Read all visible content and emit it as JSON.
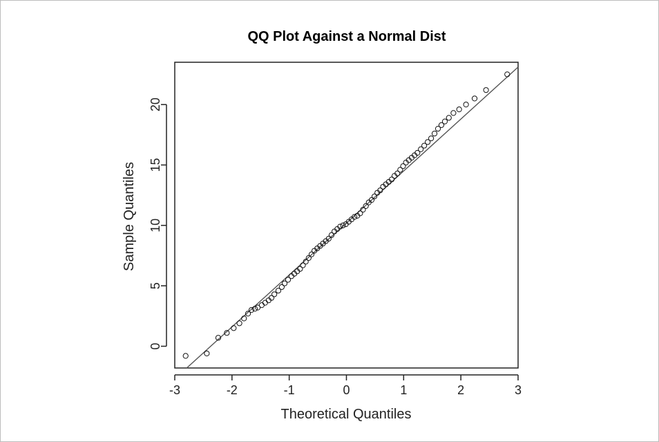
{
  "chart_data": {
    "type": "scatter",
    "title": "QQ Plot Against a Normal Dist",
    "xlabel": "Theoretical Quantiles",
    "ylabel": "Sample Quantiles",
    "xlim": [
      -3,
      3
    ],
    "ylim": [
      -1.8,
      23.5
    ],
    "grid": false,
    "legend": "none",
    "x_ticks": [
      -3,
      -2,
      -1,
      0,
      1,
      2,
      3
    ],
    "y_ticks": [
      0,
      5,
      10,
      15,
      20
    ],
    "reference_line": {
      "intercept": 10.2,
      "slope": 4.3
    },
    "series": [
      {
        "marker": "open-circle",
        "x": [
          -2.81,
          -2.44,
          -2.24,
          -2.09,
          -1.97,
          -1.87,
          -1.79,
          -1.72,
          -1.66,
          -1.6,
          -1.55,
          -1.48,
          -1.42,
          -1.36,
          -1.31,
          -1.26,
          -1.19,
          -1.13,
          -1.08,
          -1.02,
          -0.96,
          -0.91,
          -0.86,
          -0.81,
          -0.76,
          -0.71,
          -0.66,
          -0.61,
          -0.56,
          -0.51,
          -0.46,
          -0.41,
          -0.36,
          -0.31,
          -0.26,
          -0.21,
          -0.16,
          -0.11,
          -0.06,
          -0.01,
          0.04,
          0.09,
          0.14,
          0.19,
          0.24,
          0.29,
          0.34,
          0.39,
          0.44,
          0.49,
          0.54,
          0.59,
          0.64,
          0.69,
          0.74,
          0.79,
          0.84,
          0.89,
          0.94,
          0.99,
          1.04,
          1.09,
          1.14,
          1.19,
          1.24,
          1.3,
          1.36,
          1.42,
          1.48,
          1.54,
          1.6,
          1.66,
          1.72,
          1.79,
          1.87,
          1.97,
          2.09,
          2.24,
          2.44,
          2.81
        ],
        "y": [
          -0.8,
          -0.6,
          0.7,
          1.1,
          1.5,
          1.9,
          2.3,
          2.7,
          3.0,
          3.1,
          3.2,
          3.4,
          3.6,
          3.8,
          4.0,
          4.3,
          4.6,
          4.9,
          5.2,
          5.5,
          5.8,
          6.0,
          6.2,
          6.4,
          6.7,
          7.0,
          7.3,
          7.6,
          7.9,
          8.1,
          8.3,
          8.5,
          8.7,
          8.9,
          9.2,
          9.5,
          9.7,
          9.9,
          10.0,
          10.1,
          10.3,
          10.5,
          10.7,
          10.8,
          11.0,
          11.3,
          11.6,
          11.9,
          12.1,
          12.4,
          12.7,
          12.9,
          13.2,
          13.4,
          13.6,
          13.8,
          14.1,
          14.3,
          14.6,
          14.9,
          15.2,
          15.4,
          15.6,
          15.8,
          16.0,
          16.3,
          16.6,
          16.9,
          17.2,
          17.6,
          18.0,
          18.3,
          18.6,
          18.9,
          19.3,
          19.6,
          20.0,
          20.5,
          21.2,
          22.5
        ]
      }
    ]
  }
}
